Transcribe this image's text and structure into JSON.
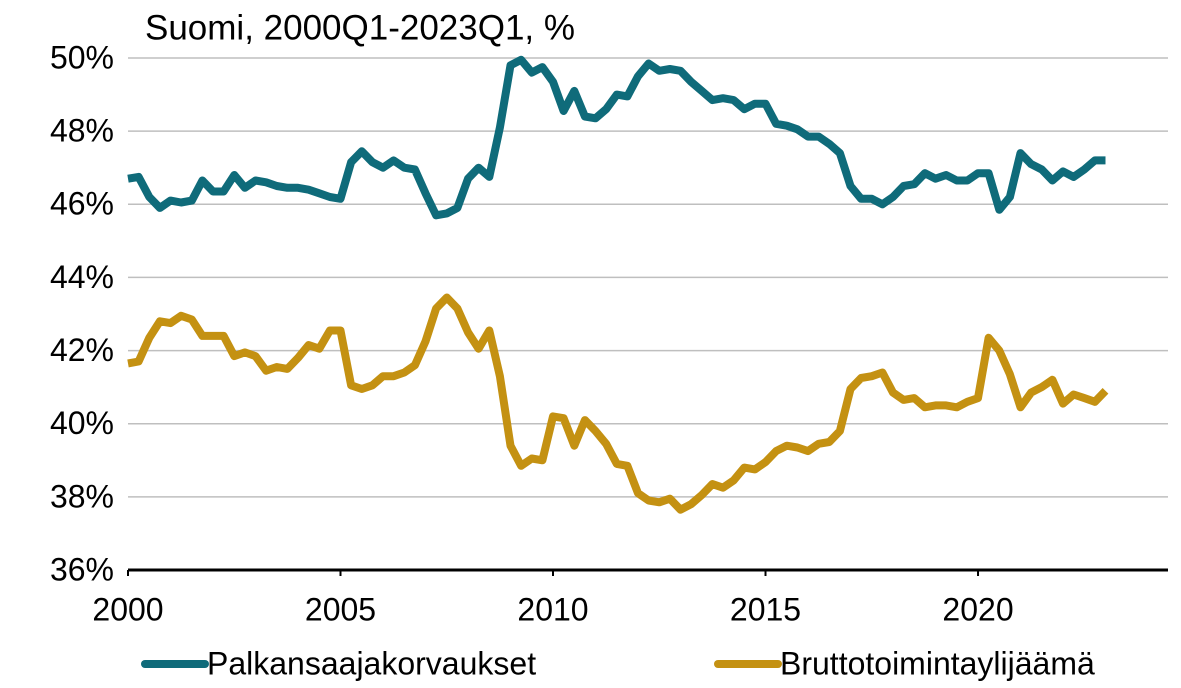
{
  "chart_data": {
    "type": "line",
    "title": "Suomi, 2000Q1-2023Q1, %",
    "x": [
      2000,
      2000.25,
      2000.5,
      2000.75,
      2001,
      2001.25,
      2001.5,
      2001.75,
      2002,
      2002.25,
      2002.5,
      2002.75,
      2003,
      2003.25,
      2003.5,
      2003.75,
      2004,
      2004.25,
      2004.5,
      2004.75,
      2005,
      2005.25,
      2005.5,
      2005.75,
      2006,
      2006.25,
      2006.5,
      2006.75,
      2007,
      2007.25,
      2007.5,
      2007.75,
      2008,
      2008.25,
      2008.5,
      2008.75,
      2009,
      2009.25,
      2009.5,
      2009.75,
      2010,
      2010.25,
      2010.5,
      2010.75,
      2011,
      2011.25,
      2011.5,
      2011.75,
      2012,
      2012.25,
      2012.5,
      2012.75,
      2013,
      2013.25,
      2013.5,
      2013.75,
      2014,
      2014.25,
      2014.5,
      2014.75,
      2015,
      2015.25,
      2015.5,
      2015.75,
      2016,
      2016.25,
      2016.5,
      2016.75,
      2017,
      2017.25,
      2017.5,
      2017.75,
      2018,
      2018.25,
      2018.5,
      2018.75,
      2019,
      2019.25,
      2019.5,
      2019.75,
      2020,
      2020.25,
      2020.5,
      2020.75,
      2021,
      2021.25,
      2021.5,
      2021.75,
      2022,
      2022.25,
      2022.5,
      2022.75,
      2023
    ],
    "series": [
      {
        "name": "Palkansaajakorvaukset",
        "color": "#0f6b7a",
        "values": [
          46.7,
          46.75,
          46.2,
          45.9,
          46.1,
          46.05,
          46.1,
          46.65,
          46.35,
          46.35,
          46.8,
          46.45,
          46.65,
          46.6,
          46.5,
          46.45,
          46.45,
          46.4,
          46.3,
          46.2,
          46.15,
          47.15,
          47.45,
          47.15,
          47.0,
          47.2,
          47.0,
          46.95,
          46.3,
          45.7,
          45.75,
          45.9,
          46.7,
          47.0,
          46.75,
          48.1,
          49.8,
          49.95,
          49.6,
          49.75,
          49.35,
          48.55,
          49.1,
          48.4,
          48.35,
          48.6,
          49.0,
          48.95,
          49.5,
          49.85,
          49.65,
          49.7,
          49.65,
          49.35,
          49.1,
          48.85,
          48.9,
          48.85,
          48.6,
          48.75,
          48.75,
          48.2,
          48.15,
          48.05,
          47.85,
          47.85,
          47.65,
          47.4,
          46.5,
          46.15,
          46.15,
          46.0,
          46.2,
          46.5,
          46.55,
          46.85,
          46.7,
          46.8,
          46.65,
          46.65,
          46.85,
          46.85,
          45.85,
          46.2,
          47.4,
          47.1,
          46.95,
          46.65,
          46.9,
          46.75,
          46.95,
          47.2,
          47.2
        ]
      },
      {
        "name": "Bruttotoimintaylijäämä",
        "color": "#c49112",
        "values": [
          41.65,
          41.7,
          42.35,
          42.8,
          42.75,
          42.95,
          42.85,
          42.4,
          42.4,
          42.4,
          41.85,
          41.95,
          41.85,
          41.45,
          41.55,
          41.5,
          41.8,
          42.15,
          42.05,
          42.55,
          42.55,
          41.05,
          40.95,
          41.05,
          41.3,
          41.3,
          41.4,
          41.6,
          42.25,
          43.15,
          43.45,
          43.15,
          42.5,
          42.05,
          42.55,
          41.3,
          39.4,
          38.85,
          39.05,
          39.0,
          40.2,
          40.15,
          39.4,
          40.1,
          39.8,
          39.45,
          38.9,
          38.85,
          38.1,
          37.9,
          37.85,
          37.95,
          37.65,
          37.8,
          38.05,
          38.35,
          38.25,
          38.45,
          38.8,
          38.75,
          38.95,
          39.25,
          39.4,
          39.35,
          39.25,
          39.45,
          39.5,
          39.8,
          40.95,
          41.25,
          41.3,
          41.4,
          40.85,
          40.65,
          40.7,
          40.45,
          40.5,
          40.5,
          40.45,
          40.6,
          40.7,
          42.35,
          42.0,
          41.35,
          40.45,
          40.85,
          41.0,
          41.2,
          40.55,
          40.8,
          40.7,
          40.6,
          40.9
        ]
      }
    ],
    "xlim": [
      2000,
      2024.47
    ],
    "xticks": [
      2000,
      2005,
      2010,
      2015,
      2020
    ],
    "ylim": [
      36,
      50
    ],
    "yticks": [
      {
        "value": 36,
        "label": "36%"
      },
      {
        "value": 38,
        "label": "38%"
      },
      {
        "value": 40,
        "label": "40%"
      },
      {
        "value": 42,
        "label": "42%"
      },
      {
        "value": 44,
        "label": "44%"
      },
      {
        "value": 46,
        "label": "46%"
      },
      {
        "value": 48,
        "label": "48%"
      },
      {
        "value": 50,
        "label": "50%"
      }
    ],
    "grid": true,
    "legend": "bottom"
  }
}
